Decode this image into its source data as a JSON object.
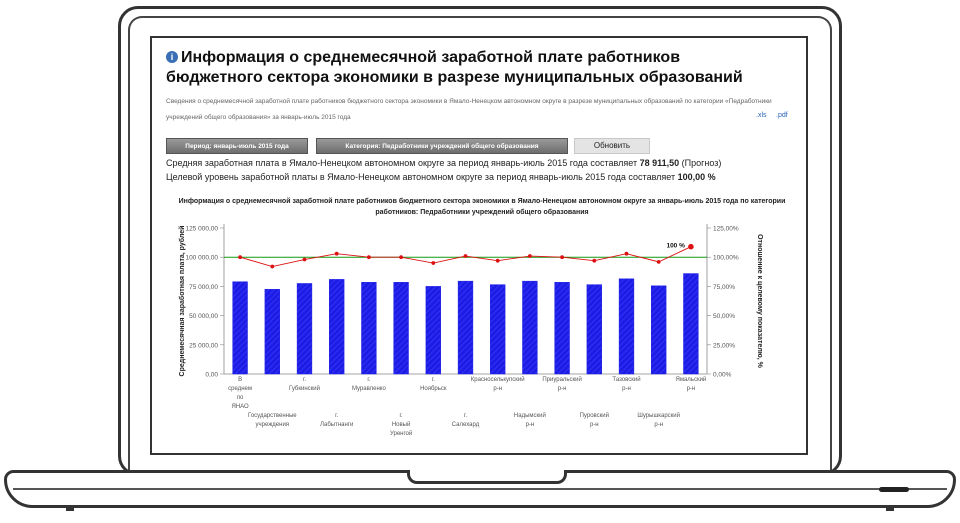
{
  "report": {
    "title": "Информация о среднемесячной заработной плате работников бюджетного сектора экономики в разрезе муниципальных образований",
    "description": "Сведения о среднемесячной заработной плате работников бюджетного сектора экономики в Ямало-Ненецком автономном округе в разрезе муниципальных образований по категории «Педработники учреждений общего образования» за январь-июль 2015 года",
    "download_xls": ".xls",
    "download_pdf": ".pdf"
  },
  "filters": {
    "period_label": "Период: январь-июль 2015 года",
    "category_label": "Категория: Педработники учреждений общего образования",
    "refresh_label": "Обновить"
  },
  "summary": {
    "avg_salary_text": "Средняя заработная плата в Ямало-Ненецком автономном округе за период январь-июль 2015 года составляет",
    "avg_salary_value": "78 911,50",
    "avg_salary_note": "(Прогноз)",
    "target_text": "Целевой уровень заработной платы в Ямало-Ненецком автономном округе за период январь-июль 2015 года составляет",
    "target_value": "100,00 %"
  },
  "chart_data": {
    "type": "bar",
    "title": "Информация о среднемесячной заработной плате работников бюджетного сектора экономики в Ямало-Ненецком автономном округе за январь-июль 2015 года по категории работников: Педработники учреждений общего образования",
    "ylabel": "Среднемесячная заработная плата, рублей",
    "y2label": "Отношение к целевому показателю, %",
    "ylim": [
      0,
      125000
    ],
    "y2lim": [
      0,
      125
    ],
    "y_ticks": [
      "0,00",
      "25 000,00",
      "50 000,00",
      "75 000,00",
      "100 000,00",
      "125 000,00"
    ],
    "y2_ticks": [
      "0,00%",
      "25,00%",
      "50,00%",
      "75,00%",
      "100,00%",
      "125,00%"
    ],
    "categories": [
      "В среднем по ЯНАО",
      "Государственные учреждения",
      "г. Губкинский",
      "г. Лабытнанги",
      "г. Муравленко",
      "г. Новый Уренгой",
      "г. Ноябрьск",
      "г. Салехард",
      "Красноселькупский р-н",
      "Надымский р-н",
      "Приуральский р-н",
      "Пуровский р-н",
      "Тазовский р-н",
      "Шурышкарский р-н",
      "Ямальский р-н"
    ],
    "category_lines": [
      [
        "В",
        "среднем",
        "по",
        "ЯНАО"
      ],
      [
        "Государственные",
        "учреждения"
      ],
      [
        "г.",
        "Губкинский"
      ],
      [
        "г.",
        "Лабытнанги"
      ],
      [
        "г.",
        "Муравленко"
      ],
      [
        "г.",
        "Новый",
        "Уренгой"
      ],
      [
        "г.",
        "Ноябрьск"
      ],
      [
        "г.",
        "Салехард"
      ],
      [
        "Красноселькупский",
        "р-н"
      ],
      [
        "Надымский",
        "р-н"
      ],
      [
        "Приуральский",
        "р-н"
      ],
      [
        "Пуровский",
        "р-н"
      ],
      [
        "Тазовский",
        "р-н"
      ],
      [
        "Шурышкарский",
        "р-н"
      ],
      [
        "Ямальский",
        "р-н"
      ]
    ],
    "series": [
      {
        "values": [
          79000,
          72500,
          77500,
          81000,
          78500,
          78500,
          75000,
          79500,
          76500,
          79500,
          78500,
          76500,
          81500,
          75500,
          86000
        ]
      },
      {
        "values": [
          100,
          92,
          98,
          103,
          100,
          100,
          95,
          101,
          97,
          101,
          100,
          97,
          103,
          96,
          109
        ]
      }
    ],
    "target_line": 100,
    "target_label": "100 %",
    "colors": {
      "bar": "#1c1ce6",
      "line": "#dd1111",
      "target": "#119911"
    }
  }
}
